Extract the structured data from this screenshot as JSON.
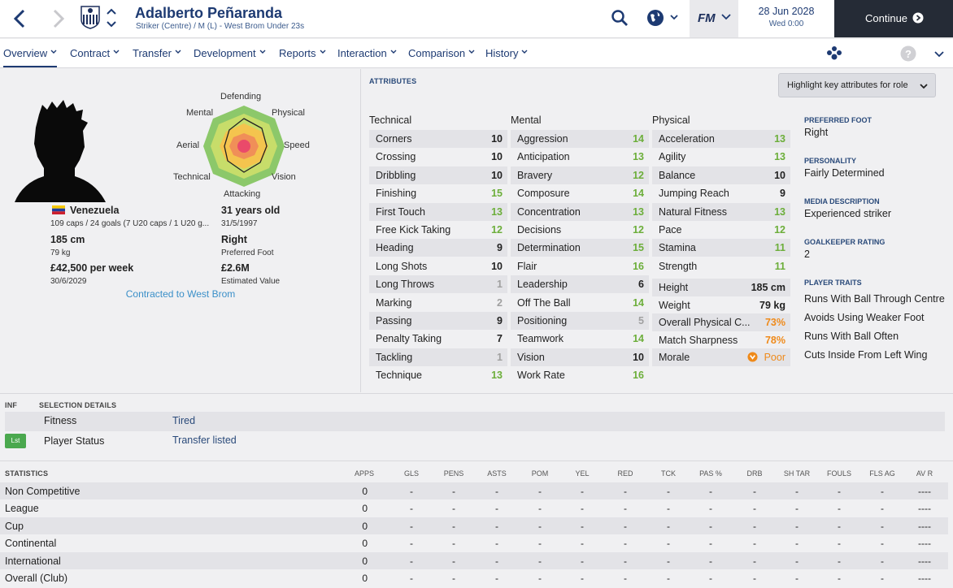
{
  "header": {
    "name": "Adalberto Peñaranda",
    "subtitle": "Striker (Centre) / M (L) - West Brom Under 23s",
    "fm_label": "FM",
    "date": "28 Jun 2028",
    "day_time": "Wed 0:00",
    "continue_label": "Continue"
  },
  "tabs": [
    {
      "label": "Overview"
    },
    {
      "label": "Contract"
    },
    {
      "label": "Transfer"
    },
    {
      "label": "Development"
    },
    {
      "label": "Reports"
    },
    {
      "label": "Interaction"
    },
    {
      "label": "Comparison"
    },
    {
      "label": "History"
    }
  ],
  "profile": {
    "nationality": "Venezuela",
    "caps": "109 caps / 24 goals (7 U20 caps / 1 U20 g...",
    "age": "31 years old",
    "dob": "31/5/1997",
    "height": "185 cm",
    "weight": "79 kg",
    "foot": "Right",
    "foot_label": "Preferred Foot",
    "wage": "£42,500 per week",
    "contract_end": "30/6/2029",
    "value": "£2.6M",
    "value_label": "Estimated Value",
    "contracted": "Contracted to West Brom",
    "radar_labels": {
      "defending": "Defending",
      "physical": "Physical",
      "speed": "Speed",
      "vision": "Vision",
      "attacking": "Attacking",
      "technical": "Technical",
      "aerial": "Aerial",
      "mental": "Mental"
    }
  },
  "attributes": {
    "section_label": "ATTRIBUTES",
    "highlight_label": "Highlight key attributes for role",
    "technical_title": "Technical",
    "mental_title": "Mental",
    "physical_title": "Physical",
    "technical": [
      {
        "name": "Corners",
        "value": "10",
        "tone": "mid"
      },
      {
        "name": "Crossing",
        "value": "10",
        "tone": "mid"
      },
      {
        "name": "Dribbling",
        "value": "10",
        "tone": "mid"
      },
      {
        "name": "Finishing",
        "value": "15",
        "tone": "hi"
      },
      {
        "name": "First Touch",
        "value": "13",
        "tone": "hi"
      },
      {
        "name": "Free Kick Taking",
        "value": "12",
        "tone": "hi"
      },
      {
        "name": "Heading",
        "value": "9",
        "tone": "mid"
      },
      {
        "name": "Long Shots",
        "value": "10",
        "tone": "mid"
      },
      {
        "name": "Long Throws",
        "value": "1",
        "tone": "lo"
      },
      {
        "name": "Marking",
        "value": "2",
        "tone": "lo"
      },
      {
        "name": "Passing",
        "value": "9",
        "tone": "mid"
      },
      {
        "name": "Penalty Taking",
        "value": "7",
        "tone": "mid"
      },
      {
        "name": "Tackling",
        "value": "1",
        "tone": "lo"
      },
      {
        "name": "Technique",
        "value": "13",
        "tone": "hi"
      }
    ],
    "mental": [
      {
        "name": "Aggression",
        "value": "14",
        "tone": "hi"
      },
      {
        "name": "Anticipation",
        "value": "13",
        "tone": "hi"
      },
      {
        "name": "Bravery",
        "value": "12",
        "tone": "hi"
      },
      {
        "name": "Composure",
        "value": "14",
        "tone": "hi"
      },
      {
        "name": "Concentration",
        "value": "13",
        "tone": "hi"
      },
      {
        "name": "Decisions",
        "value": "12",
        "tone": "hi"
      },
      {
        "name": "Determination",
        "value": "15",
        "tone": "hi"
      },
      {
        "name": "Flair",
        "value": "16",
        "tone": "hi"
      },
      {
        "name": "Leadership",
        "value": "6",
        "tone": "mid"
      },
      {
        "name": "Off The Ball",
        "value": "14",
        "tone": "hi"
      },
      {
        "name": "Positioning",
        "value": "5",
        "tone": "lo"
      },
      {
        "name": "Teamwork",
        "value": "14",
        "tone": "hi"
      },
      {
        "name": "Vision",
        "value": "10",
        "tone": "mid"
      },
      {
        "name": "Work Rate",
        "value": "16",
        "tone": "hi"
      }
    ],
    "physical": [
      {
        "name": "Acceleration",
        "value": "13",
        "tone": "hi"
      },
      {
        "name": "Agility",
        "value": "13",
        "tone": "hi"
      },
      {
        "name": "Balance",
        "value": "10",
        "tone": "mid"
      },
      {
        "name": "Jumping Reach",
        "value": "9",
        "tone": "mid"
      },
      {
        "name": "Natural Fitness",
        "value": "13",
        "tone": "hi"
      },
      {
        "name": "Pace",
        "value": "12",
        "tone": "hi"
      },
      {
        "name": "Stamina",
        "value": "11",
        "tone": "hi"
      },
      {
        "name": "Strength",
        "value": "11",
        "tone": "hi"
      }
    ],
    "extra": [
      {
        "name": "Height",
        "value": "185 cm",
        "tone": "mid"
      },
      {
        "name": "Weight",
        "value": "79 kg",
        "tone": "mid"
      },
      {
        "name": "Overall Physical C...",
        "value": "73%",
        "tone": "orange"
      },
      {
        "name": "Match Sharpness",
        "value": "78%",
        "tone": "orange"
      },
      {
        "name": "Morale",
        "value": "Poor",
        "tone": "orange"
      }
    ],
    "side": [
      {
        "label": "PREFERRED FOOT",
        "value": "Right"
      },
      {
        "label": "PERSONALITY",
        "value": "Fairly Determined"
      },
      {
        "label": "MEDIA DESCRIPTION",
        "value": "Experienced striker"
      },
      {
        "label": "GOALKEEPER RATING",
        "value": "2"
      }
    ],
    "traits_label": "PLAYER TRAITS",
    "traits": [
      "Runs With Ball Through Centre",
      "Avoids Using Weaker Foot",
      "Runs With Ball Often",
      "Cuts Inside From Left Wing"
    ]
  },
  "selection": {
    "inf_label": "INF",
    "title": "SELECTION DETAILS",
    "rows": [
      {
        "label": "Fitness",
        "value": "Tired",
        "badge": ""
      },
      {
        "label": "Player Status",
        "value": "Transfer listed",
        "badge": "Lst"
      }
    ]
  },
  "statistics": {
    "title": "STATISTICS",
    "columns": [
      "APPS",
      "GLS",
      "PENS",
      "ASTS",
      "POM",
      "YEL",
      "RED",
      "TCK",
      "PAS %",
      "DRB",
      "SH TAR",
      "FOULS",
      "FLS AG",
      "AV R"
    ],
    "rows": [
      {
        "label": "Non Competitive",
        "cells": [
          "0",
          "-",
          "-",
          "-",
          "-",
          "-",
          "-",
          "-",
          "-",
          "-",
          "-",
          "-",
          "-",
          "----"
        ]
      },
      {
        "label": "League",
        "cells": [
          "0",
          "-",
          "-",
          "-",
          "-",
          "-",
          "-",
          "-",
          "-",
          "-",
          "-",
          "-",
          "-",
          "----"
        ]
      },
      {
        "label": "Cup",
        "cells": [
          "0",
          "-",
          "-",
          "-",
          "-",
          "-",
          "-",
          "-",
          "-",
          "-",
          "-",
          "-",
          "-",
          "----"
        ]
      },
      {
        "label": "Continental",
        "cells": [
          "0",
          "-",
          "-",
          "-",
          "-",
          "-",
          "-",
          "-",
          "-",
          "-",
          "-",
          "-",
          "-",
          "----"
        ]
      },
      {
        "label": "International",
        "cells": [
          "0",
          "-",
          "-",
          "-",
          "-",
          "-",
          "-",
          "-",
          "-",
          "-",
          "-",
          "-",
          "-",
          "----"
        ]
      },
      {
        "label": "Overall (Club)",
        "cells": [
          "0",
          "-",
          "-",
          "-",
          "-",
          "-",
          "-",
          "-",
          "-",
          "-",
          "-",
          "-",
          "-",
          "----"
        ]
      }
    ]
  },
  "colors": {
    "accent": "#1d3a72",
    "good": "#6cae3a",
    "warn": "#ef8a1a",
    "link": "#3a8fc8"
  }
}
